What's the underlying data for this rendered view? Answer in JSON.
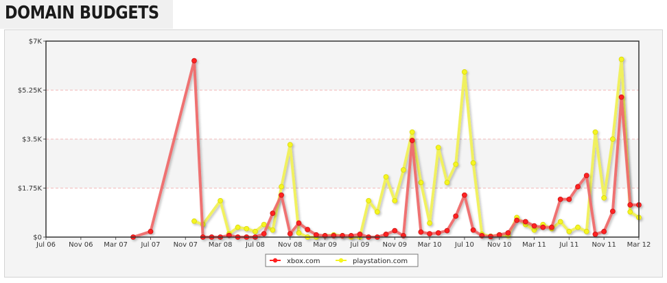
{
  "header": {
    "title": "DOMAIN BUDGETS"
  },
  "chart_data": {
    "type": "line",
    "title": "DOMAIN BUDGETS",
    "xlabel": "",
    "ylabel": "",
    "x_axis_labels": [
      "Jul 06",
      "Nov 06",
      "Mar 07",
      "Jul 07",
      "Nov 07",
      "Mar 08",
      "Jul 08",
      "Nov 08",
      "Mar 09",
      "Jul 09",
      "Nov 09",
      "Mar 10",
      "Jul 10",
      "Nov 10",
      "Mar 11",
      "Jul 11",
      "Nov 11",
      "Mar 12"
    ],
    "y_axis_labels": [
      "$0",
      "$1.75K",
      "$3.5K",
      "$5.25K",
      "$7K"
    ],
    "ylim": [
      0,
      7000
    ],
    "x_unit": "months since Jul 2006",
    "xlim": [
      0,
      68
    ],
    "grid": true,
    "legend_position": "bottom-center",
    "series": [
      {
        "name": "xbox.com",
        "color": "#ff2020",
        "line_color": "#ef6b6b",
        "points": [
          [
            12,
            0
          ],
          [
            14,
            200
          ],
          [
            19,
            6300
          ],
          [
            20,
            0
          ],
          [
            21,
            0
          ],
          [
            22,
            0
          ],
          [
            23,
            60
          ],
          [
            24,
            0
          ],
          [
            25,
            0
          ],
          [
            26,
            0
          ],
          [
            27,
            120
          ],
          [
            28,
            850
          ],
          [
            29,
            1500
          ],
          [
            30,
            120
          ],
          [
            31,
            500
          ],
          [
            32,
            270
          ],
          [
            33,
            80
          ],
          [
            34,
            50
          ],
          [
            35,
            50
          ],
          [
            36,
            50
          ],
          [
            37,
            50
          ],
          [
            38,
            100
          ],
          [
            39,
            0
          ],
          [
            40,
            0
          ],
          [
            41,
            100
          ],
          [
            42,
            230
          ],
          [
            43,
            50
          ],
          [
            44,
            3450
          ],
          [
            45,
            180
          ],
          [
            46,
            120
          ],
          [
            47,
            150
          ],
          [
            48,
            230
          ],
          [
            49,
            750
          ],
          [
            50,
            1500
          ],
          [
            51,
            250
          ],
          [
            52,
            50
          ],
          [
            53,
            20
          ],
          [
            54,
            80
          ],
          [
            55,
            150
          ],
          [
            56,
            600
          ],
          [
            57,
            550
          ],
          [
            58,
            400
          ],
          [
            59,
            350
          ],
          [
            60,
            350
          ],
          [
            61,
            1350
          ],
          [
            62,
            1350
          ],
          [
            63,
            1800
          ],
          [
            64,
            2200
          ],
          [
            65,
            100
          ],
          [
            66,
            200
          ],
          [
            67,
            920
          ],
          [
            68,
            5000
          ],
          [
            69,
            1150
          ],
          [
            70,
            1150
          ]
        ]
      },
      {
        "name": "playstation.com",
        "color": "#f5f520",
        "line_color": "#f1f15a",
        "points": [
          [
            19,
            570
          ],
          [
            20,
            450
          ],
          [
            22,
            1300
          ],
          [
            23,
            120
          ],
          [
            24,
            350
          ],
          [
            25,
            300
          ],
          [
            26,
            200
          ],
          [
            27,
            450
          ],
          [
            28,
            250
          ],
          [
            29,
            1800
          ],
          [
            30,
            3300
          ],
          [
            31,
            150
          ],
          [
            32,
            0
          ],
          [
            33,
            0
          ],
          [
            34,
            50
          ],
          [
            35,
            80
          ],
          [
            36,
            50
          ],
          [
            37,
            0
          ],
          [
            38,
            0
          ],
          [
            39,
            1300
          ],
          [
            40,
            900
          ],
          [
            41,
            2150
          ],
          [
            42,
            1300
          ],
          [
            43,
            2400
          ],
          [
            44,
            3750
          ],
          [
            45,
            1950
          ],
          [
            46,
            500
          ],
          [
            47,
            3200
          ],
          [
            48,
            1950
          ],
          [
            49,
            2600
          ],
          [
            50,
            5900
          ],
          [
            51,
            2650
          ],
          [
            52,
            100
          ],
          [
            53,
            30
          ],
          [
            54,
            80
          ],
          [
            55,
            50
          ],
          [
            56,
            700
          ],
          [
            57,
            450
          ],
          [
            58,
            250
          ],
          [
            59,
            450
          ],
          [
            60,
            300
          ],
          [
            61,
            550
          ],
          [
            62,
            200
          ],
          [
            63,
            350
          ],
          [
            64,
            200
          ],
          [
            65,
            3750
          ],
          [
            66,
            1400
          ],
          [
            67,
            3500
          ],
          [
            68,
            6350
          ],
          [
            69,
            900
          ],
          [
            70,
            700
          ]
        ]
      }
    ]
  }
}
